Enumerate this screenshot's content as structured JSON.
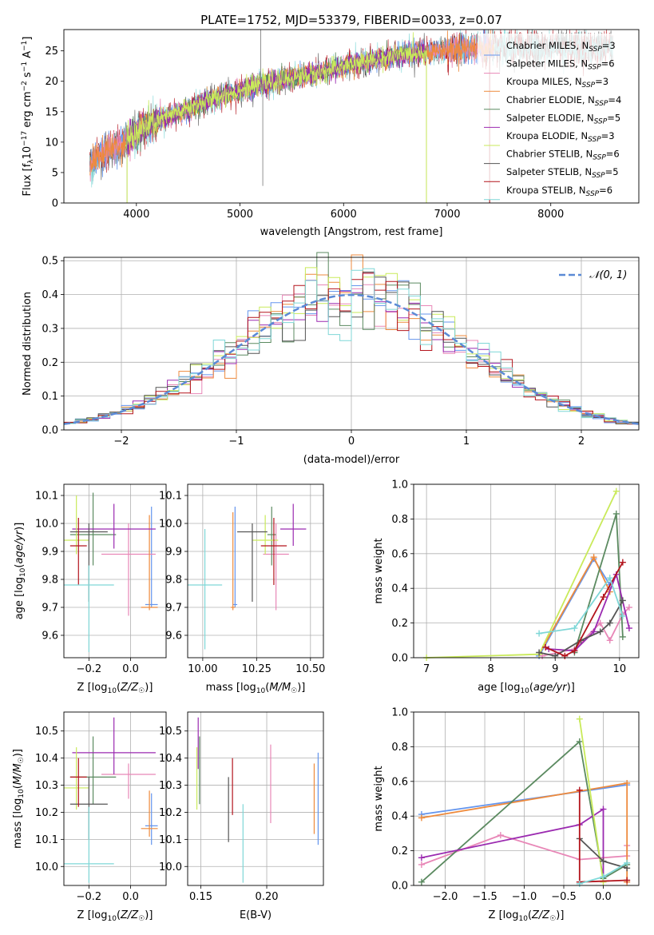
{
  "figure": {
    "title": "PLATE=1752, MJD=53379, FIBERID=0033, z=0.07"
  },
  "colors": {
    "chabrier_miles": "#6495ed",
    "salpeter_miles": "#e887b7",
    "kroupa_miles": "#ee8a3c",
    "chabrier_elodie": "#5b8a60",
    "salpeter_elodie": "#9b2ab0",
    "kroupa_elodie": "#c9ea5a",
    "chabrier_stelib": "#555555",
    "salpeter_stelib": "#b3141c",
    "kroupa_stelib": "#7fd7d7"
  },
  "chart_data": [
    {
      "id": "spectrum",
      "type": "line",
      "title": "PLATE=1752, MJD=53379, FIBERID=0033, z=0.07",
      "xlabel": "wavelength [Angstrom, rest frame]",
      "ylabel": "Flux [f_λ 10^-17 erg cm^-2 s^-1 A^-1]",
      "xlim": [
        3300,
        8850
      ],
      "ylim": [
        0,
        28.5
      ],
      "xticks": [
        4000,
        5000,
        6000,
        7000,
        8000
      ],
      "yticks": [
        0,
        5,
        10,
        15,
        20,
        25
      ],
      "grid": false,
      "legend_position": "right",
      "legend": [
        {
          "label": "Chabrier MILES, N",
          "sub": "SSP",
          "suffix": "=3",
          "color": "#6495ed"
        },
        {
          "label": "Salpeter MILES, N",
          "sub": "SSP",
          "suffix": "=6",
          "color": "#e887b7"
        },
        {
          "label": "Kroupa MILES, N",
          "sub": "SSP",
          "suffix": "=3",
          "color": "#ee8a3c"
        },
        {
          "label": "Chabrier ELODIE, N",
          "sub": "SSP",
          "suffix": "=4",
          "color": "#5b8a60"
        },
        {
          "label": "Salpeter ELODIE, N",
          "sub": "SSP",
          "suffix": "=5",
          "color": "#9b2ab0"
        },
        {
          "label": "Kroupa ELODIE, N",
          "sub": "SSP",
          "suffix": "=3",
          "color": "#c9ea5a"
        },
        {
          "label": "Chabrier STELIB, N",
          "sub": "SSP",
          "suffix": "=6",
          "color": "#555555"
        },
        {
          "label": "Salpeter STELIB, N",
          "sub": "SSP",
          "suffix": "=5",
          "color": "#b3141c"
        },
        {
          "label": "Kroupa STELIB, N",
          "sub": "SSP",
          "suffix": "=6",
          "color": "#7fd7d7"
        }
      ],
      "continuum": {
        "x": [
          3550,
          3700,
          3850,
          4000,
          4200,
          4500,
          4800,
          5000,
          5200,
          5500,
          5800,
          6000,
          6300,
          6600,
          6900,
          7200,
          7500,
          7800,
          8000,
          8300,
          8600
        ],
        "y": [
          6.5,
          8.5,
          9.5,
          11.5,
          13.5,
          15.5,
          17.5,
          18.5,
          19.5,
          20.5,
          21.5,
          22.5,
          23.5,
          24.5,
          25,
          25.5,
          25.5,
          25.5,
          25.5,
          25.5,
          25.5
        ]
      },
      "series_ranges": [
        {
          "name": "Chabrier MILES",
          "x": [
            3550,
            7450
          ]
        },
        {
          "name": "Salpeter MILES",
          "x": [
            3550,
            7450
          ]
        },
        {
          "name": "Kroupa MILES",
          "x": [
            3550,
            7450
          ]
        },
        {
          "name": "Chabrier ELODIE",
          "x": [
            3900,
            6800
          ]
        },
        {
          "name": "Salpeter ELODIE",
          "x": [
            3900,
            6800
          ]
        },
        {
          "name": "Kroupa ELODIE",
          "x": [
            3900,
            6800
          ]
        },
        {
          "name": "Chabrier STELIB",
          "x": [
            3550,
            8600
          ]
        },
        {
          "name": "Salpeter STELIB",
          "x": [
            3550,
            8600
          ]
        },
        {
          "name": "Kroupa STELIB",
          "x": [
            3550,
            8600
          ]
        }
      ],
      "drops": [
        {
          "x": 3910,
          "y_low": 0
        },
        {
          "x": 6800,
          "y_low": 0
        },
        {
          "x": 7410,
          "y_low": 0
        },
        {
          "x": 5220,
          "y_low": 2.8
        }
      ],
      "spikes": [
        {
          "x": 5200,
          "y_high": 28.5
        }
      ]
    },
    {
      "id": "residuals",
      "type": "histogram",
      "xlabel": "(data-model)/error",
      "ylabel": "Normed distribution",
      "xlim": [
        -2.5,
        2.5
      ],
      "ylim": [
        0,
        0.51
      ],
      "xticks": [
        -2,
        -1,
        0,
        1,
        2
      ],
      "yticks": [
        0.0,
        0.1,
        0.2,
        0.3,
        0.4,
        0.5
      ],
      "grid": true,
      "legend": [
        {
          "label": "𝒩(0, 1)",
          "style": "dashed",
          "color": "#5b8ad6"
        }
      ],
      "legend_position": "top-right",
      "bin_width": 0.1,
      "reference_curve": "normal(0,1)"
    },
    {
      "id": "age_vs_Z",
      "type": "errorbar",
      "xlabel": "Z [log10(Z/Z☉)]",
      "ylabel": "age [log10(age/yr)]",
      "xlim": [
        -0.32,
        0.17
      ],
      "ylim": [
        9.52,
        10.14
      ],
      "xticks": [
        -0.2,
        0.0
      ],
      "yticks": [
        9.6,
        9.7,
        9.8,
        9.9,
        10.0,
        10.1
      ],
      "grid": true,
      "points": [
        {
          "s": "Chabrier MILES",
          "x": 0.1,
          "xe": 0.03,
          "y": 9.71,
          "ye": [
            9.7,
            10.06
          ]
        },
        {
          "s": "Salpeter MILES",
          "x": -0.01,
          "xe": 0.13,
          "y": 9.89,
          "ye": [
            9.67,
            10.0
          ]
        },
        {
          "s": "Kroupa MILES",
          "x": 0.09,
          "xe": 0.04,
          "y": 9.7,
          "ye": [
            9.69,
            10.03
          ]
        },
        {
          "s": "Chabrier ELODIE",
          "x": -0.18,
          "xe": 0.11,
          "y": 9.96,
          "ye": [
            9.85,
            10.11
          ]
        },
        {
          "s": "Salpeter ELODIE",
          "x": -0.08,
          "xe": 0.2,
          "y": 9.98,
          "ye": [
            9.91,
            10.07
          ]
        },
        {
          "s": "Kroupa ELODIE",
          "x": -0.26,
          "xe": 0.06,
          "y": 9.94,
          "ye": [
            9.89,
            10.1
          ]
        },
        {
          "s": "Chabrier STELIB",
          "x": -0.2,
          "xe": 0.09,
          "y": 9.97,
          "ye": [
            9.72,
            10.0
          ]
        },
        {
          "s": "Salpeter STELIB",
          "x": -0.25,
          "xe": 0.04,
          "y": 9.92,
          "ye": [
            9.78,
            10.02
          ]
        },
        {
          "s": "Kroupa STELIB",
          "x": -0.2,
          "xe": 0.12,
          "y": 9.78,
          "ye": [
            9.54,
            9.85
          ]
        }
      ]
    },
    {
      "id": "age_vs_mass",
      "type": "errorbar",
      "xlabel": "mass [log10(M/M☉)]",
      "ylabel": "",
      "xlim": [
        9.93,
        10.56
      ],
      "ylim": [
        9.52,
        10.14
      ],
      "xticks": [
        10.0,
        10.25,
        10.5
      ],
      "yticks": [
        9.6,
        9.7,
        9.8,
        9.9,
        10.0,
        10.1
      ],
      "grid": true,
      "points": [
        {
          "s": "Chabrier MILES",
          "x": 10.15,
          "xe": 0.01,
          "y": 9.71,
          "ye": [
            9.7,
            10.06
          ]
        },
        {
          "s": "Salpeter MILES",
          "x": 10.34,
          "xe": 0.06,
          "y": 9.89,
          "ye": [
            9.69,
            10.0
          ]
        },
        {
          "s": "Kroupa MILES",
          "x": 10.14,
          "xe": 0.01,
          "y": 9.7,
          "ye": [
            9.69,
            10.04
          ]
        },
        {
          "s": "Chabrier ELODIE",
          "x": 10.32,
          "xe": 0.02,
          "y": 9.96,
          "ye": [
            9.85,
            10.06
          ]
        },
        {
          "s": "Salpeter ELODIE",
          "x": 10.42,
          "xe": 0.06,
          "y": 9.98,
          "ye": [
            9.92,
            10.07
          ]
        },
        {
          "s": "Kroupa ELODIE",
          "x": 10.29,
          "xe": 0.06,
          "y": 9.94,
          "ye": [
            9.89,
            10.03
          ]
        },
        {
          "s": "Chabrier STELIB",
          "x": 10.23,
          "xe": 0.07,
          "y": 9.97,
          "ye": [
            9.72,
            10.0
          ]
        },
        {
          "s": "Salpeter STELIB",
          "x": 10.33,
          "xe": 0.06,
          "y": 9.92,
          "ye": [
            9.78,
            10.02
          ]
        },
        {
          "s": "Kroupa STELIB",
          "x": 10.01,
          "xe": 0.08,
          "y": 9.78,
          "ye": [
            9.55,
            9.98
          ]
        }
      ]
    },
    {
      "id": "weight_vs_age",
      "type": "line",
      "xlabel": "age [log10(age/yr)]",
      "ylabel": "mass weight",
      "xlim": [
        6.8,
        10.3
      ],
      "ylim": [
        0,
        1.0
      ],
      "xticks": [
        7,
        8,
        9,
        10
      ],
      "yticks": [
        0.0,
        0.2,
        0.4,
        0.6,
        0.8,
        1.0
      ],
      "grid": true,
      "series": [
        {
          "name": "Chabrier MILES",
          "x": [
            8.75,
            9.6,
            9.85
          ],
          "y": [
            0.01,
            0.57,
            0.42
          ]
        },
        {
          "s": "",
          "name": "Salpeter MILES",
          "x": [
            8.8,
            9.3,
            9.7,
            9.85,
            10.05,
            10.15
          ],
          "y": [
            0.01,
            0.05,
            0.2,
            0.1,
            0.25,
            0.29
          ]
        },
        {
          "name": "Kroupa MILES",
          "x": [
            8.75,
            9.6,
            9.85
          ],
          "y": [
            0.02,
            0.58,
            0.38
          ]
        },
        {
          "name": "Chabrier ELODIE",
          "x": [
            9.3,
            9.95,
            10.05
          ],
          "y": [
            0.03,
            0.83,
            0.12
          ]
        },
        {
          "name": "Salpeter ELODIE",
          "x": [
            8.9,
            9.3,
            9.6,
            9.95,
            10.15
          ],
          "y": [
            0.05,
            0.04,
            0.15,
            0.48,
            0.17
          ]
        },
        {
          "name": "Kroupa ELODIE",
          "x": [
            7.0,
            8.75,
            9.95
          ],
          "y": [
            0.0,
            0.02,
            0.96
          ]
        },
        {
          "name": "Chabrier STELIB",
          "x": [
            8.75,
            9.0,
            9.4,
            9.7,
            9.85,
            10.05
          ],
          "y": [
            0.03,
            0.01,
            0.1,
            0.15,
            0.2,
            0.33
          ]
        },
        {
          "name": "Salpeter STELIB",
          "x": [
            8.85,
            9.15,
            9.3,
            9.75,
            10.05
          ],
          "y": [
            0.06,
            0.01,
            0.04,
            0.35,
            0.55
          ]
        },
        {
          "name": "Kroupa STELIB",
          "x": [
            8.75,
            9.3,
            9.85,
            10.05
          ],
          "y": [
            0.14,
            0.17,
            0.46,
            0.24
          ]
        }
      ]
    },
    {
      "id": "mass_vs_Z",
      "type": "errorbar",
      "xlabel": "Z [log10(Z/Z☉)]",
      "ylabel": "mass [log10(M/M☉)]",
      "xlim": [
        -0.32,
        0.17
      ],
      "ylim": [
        9.93,
        10.57
      ],
      "xticks": [
        -0.2,
        0.0
      ],
      "yticks": [
        10.0,
        10.1,
        10.2,
        10.3,
        10.4,
        10.5
      ],
      "grid": true,
      "points": [
        {
          "s": "Chabrier MILES",
          "x": 0.1,
          "xe": 0.03,
          "y": 10.15,
          "ye": [
            10.08,
            10.27
          ]
        },
        {
          "s": "Salpeter MILES",
          "x": -0.01,
          "xe": 0.13,
          "y": 10.34,
          "ye": [
            10.25,
            10.38
          ]
        },
        {
          "s": "Kroupa MILES",
          "x": 0.09,
          "xe": 0.04,
          "y": 10.14,
          "ye": [
            10.11,
            10.28
          ]
        },
        {
          "s": "Chabrier ELODIE",
          "x": -0.18,
          "xe": 0.11,
          "y": 10.33,
          "ye": [
            10.23,
            10.48
          ]
        },
        {
          "s": "Salpeter ELODIE",
          "x": -0.08,
          "xe": 0.2,
          "y": 10.42,
          "ye": [
            10.34,
            10.55
          ]
        },
        {
          "s": "Kroupa ELODIE",
          "x": -0.26,
          "xe": 0.06,
          "y": 10.29,
          "ye": [
            10.21,
            10.44
          ]
        },
        {
          "s": "Chabrier STELIB",
          "x": -0.2,
          "xe": 0.09,
          "y": 10.23,
          "ye": [
            10.1,
            10.33
          ]
        },
        {
          "s": "Salpeter STELIB",
          "x": -0.25,
          "xe": 0.04,
          "y": 10.33,
          "ye": [
            10.22,
            10.4
          ]
        },
        {
          "s": "Kroupa STELIB",
          "x": -0.2,
          "xe": 0.12,
          "y": 10.01,
          "ye": [
            9.94,
            10.22
          ]
        }
      ]
    },
    {
      "id": "mass_vs_ebv",
      "type": "errorbar",
      "xlabel": "E(B-V)",
      "ylabel": "",
      "xlim": [
        0.14,
        0.243
      ],
      "ylim": [
        9.93,
        10.57
      ],
      "xticks": [
        0.15,
        0.2
      ],
      "yticks": [
        10.0,
        10.1,
        10.2,
        10.3,
        10.4,
        10.5
      ],
      "grid": true,
      "points": [
        {
          "s": "Chabrier MILES",
          "x": 0.239,
          "y": 10.25,
          "ye": [
            10.08,
            10.42
          ]
        },
        {
          "s": "Salpeter MILES",
          "x": 0.203,
          "y": 10.3,
          "ye": [
            10.16,
            10.45
          ]
        },
        {
          "s": "Kroupa MILES",
          "x": 0.236,
          "y": 10.25,
          "ye": [
            10.12,
            10.38
          ]
        },
        {
          "s": "Chabrier ELODIE",
          "x": 0.149,
          "y": 10.35,
          "ye": [
            10.23,
            10.48
          ]
        },
        {
          "s": "Salpeter ELODIE",
          "x": 0.148,
          "y": 10.45,
          "ye": [
            10.36,
            10.55
          ]
        },
        {
          "s": "Kroupa ELODIE",
          "x": 0.147,
          "y": 10.33,
          "ye": [
            10.21,
            10.44
          ]
        },
        {
          "s": "Chabrier STELIB",
          "x": 0.171,
          "y": 10.21,
          "ye": [
            10.09,
            10.33
          ]
        },
        {
          "s": "Salpeter STELIB",
          "x": 0.174,
          "y": 10.3,
          "ye": [
            10.19,
            10.4
          ]
        },
        {
          "s": "Kroupa STELIB",
          "x": 0.182,
          "y": 10.08,
          "ye": [
            9.94,
            10.23
          ]
        }
      ]
    },
    {
      "id": "weight_vs_Z",
      "type": "line",
      "xlabel": "Z [log10(Z/Z☉)]",
      "ylabel": "mass weight",
      "xlim": [
        -2.4,
        0.45
      ],
      "ylim": [
        0,
        1.0
      ],
      "xticks": [
        -2.0,
        -1.5,
        -1.0,
        -0.5,
        0.0
      ],
      "yticks": [
        0.0,
        0.2,
        0.4,
        0.6,
        0.8,
        1.0
      ],
      "grid": true,
      "series": [
        {
          "name": "Chabrier MILES",
          "x": [
            -2.3,
            0.3
          ],
          "y": [
            0.41,
            0.58
          ]
        },
        {
          "name": "Salpeter MILES",
          "x": [
            -2.3,
            -1.3,
            -0.3,
            0.0,
            0.3,
            0.3
          ],
          "y": [
            0.12,
            0.29,
            0.15,
            0.16,
            0.17,
            0.23
          ]
        },
        {
          "name": "Kroupa MILES",
          "x": [
            -2.3,
            0.3,
            0.3
          ],
          "y": [
            0.39,
            0.59,
            0.02
          ]
        },
        {
          "name": "Chabrier ELODIE",
          "x": [
            -2.3,
            -0.3,
            0.0,
            0.3
          ],
          "y": [
            0.02,
            0.83,
            0.04,
            0.12
          ]
        },
        {
          "name": "Salpeter ELODIE",
          "x": [
            -2.3,
            -0.3,
            0.0,
            0.0
          ],
          "y": [
            0.16,
            0.35,
            0.44,
            0.05
          ]
        },
        {
          "name": "Kroupa ELODIE",
          "x": [
            -0.3,
            0.0
          ],
          "y": [
            0.96,
            0.02
          ]
        },
        {
          "name": "Chabrier STELIB",
          "x": [
            -0.3,
            0.0,
            0.3
          ],
          "y": [
            0.27,
            0.14,
            0.1
          ]
        },
        {
          "name": "Salpeter STELIB",
          "x": [
            -0.3,
            -0.3,
            0.3
          ],
          "y": [
            0.55,
            0.02,
            0.03
          ]
        },
        {
          "name": "Kroupa STELIB",
          "x": [
            -0.3,
            0.0,
            0.3
          ],
          "y": [
            0.01,
            0.05,
            0.13
          ]
        }
      ]
    }
  ]
}
